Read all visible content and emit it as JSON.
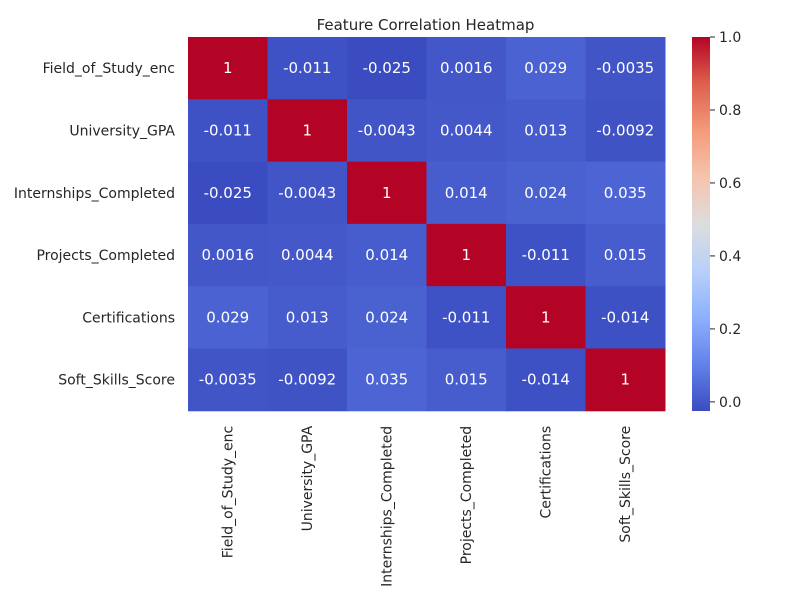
{
  "chart_data": {
    "type": "heatmap",
    "title": "Feature Correlation Heatmap",
    "rows": [
      "Field_of_Study_enc",
      "University_GPA",
      "Internships_Completed",
      "Projects_Completed",
      "Certifications",
      "Soft_Skills_Score"
    ],
    "columns": [
      "Field_of_Study_enc",
      "University_GPA",
      "Internships_Completed",
      "Projects_Completed",
      "Certifications",
      "Soft_Skills_Score"
    ],
    "values": [
      [
        1,
        -0.011,
        -0.025,
        0.0016,
        0.029,
        -0.0035
      ],
      [
        -0.011,
        1,
        -0.0043,
        0.0044,
        0.013,
        -0.0092
      ],
      [
        -0.025,
        -0.0043,
        1,
        0.014,
        0.024,
        0.035
      ],
      [
        0.0016,
        0.0044,
        0.014,
        1,
        -0.011,
        0.015
      ],
      [
        0.029,
        0.013,
        0.024,
        -0.011,
        1,
        -0.014
      ],
      [
        -0.0035,
        -0.0092,
        0.035,
        0.015,
        -0.014,
        1
      ]
    ],
    "annotations": [
      [
        "1",
        "-0.011",
        "-0.025",
        "0.0016",
        "0.029",
        "-0.0035"
      ],
      [
        "-0.011",
        "1",
        "-0.0043",
        "0.0044",
        "0.013",
        "-0.0092"
      ],
      [
        "-0.025",
        "-0.0043",
        "1",
        "0.014",
        "0.024",
        "0.035"
      ],
      [
        "0.0016",
        "0.0044",
        "0.014",
        "1",
        "-0.011",
        "0.015"
      ],
      [
        "0.029",
        "0.013",
        "0.024",
        "-0.011",
        "1",
        "-0.014"
      ],
      [
        "-0.0035",
        "-0.0092",
        "0.035",
        "0.015",
        "-0.014",
        "1"
      ]
    ],
    "colormap": "coolwarm",
    "vmin": -0.025,
    "vmax": 1,
    "colorbar": {
      "ticks": [
        0.0,
        0.2,
        0.4,
        0.6,
        0.8,
        1.0
      ],
      "tick_labels": [
        "0.0",
        "0.2",
        "0.4",
        "0.6",
        "0.8",
        "1.0"
      ]
    },
    "grid": false,
    "legend": "colorbar-right"
  }
}
